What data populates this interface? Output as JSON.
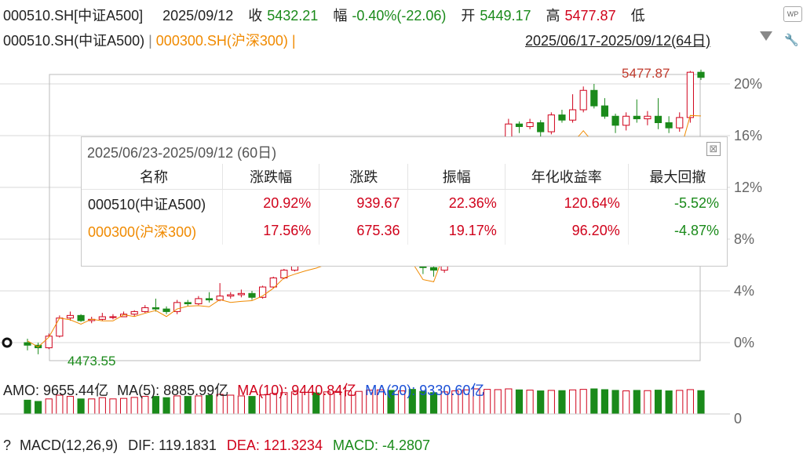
{
  "header": {
    "code": "000510.SH[中证A500]",
    "date": "2025/09/12",
    "close_label": "收",
    "close_value": "5432.21",
    "change_label": "幅",
    "change_value": "-0.40%(-22.06)",
    "open_label": "开",
    "open_value": "5449.17",
    "high_label": "高",
    "high_value": "5477.87",
    "low_label": "低"
  },
  "legend": {
    "series1": "000510.SH(中证A500)",
    "sep1": " | ",
    "series2": "000300.SH(沪深300)",
    "sep2": " |"
  },
  "range": "2025/06/17-2025/09/12(64日)",
  "wp_label": "WP",
  "y_axis": {
    "ticks": [
      "20%",
      "16%",
      "12%",
      "8%",
      "4%",
      "0%"
    ]
  },
  "annotations": {
    "high": "5477.87",
    "low": "4473.55"
  },
  "panel": {
    "title": "2025/06/23-2025/09/12 (60日)",
    "close": "⊠",
    "headers": [
      "名称",
      "涨跌幅",
      "涨跌",
      "振幅",
      "年化收益率",
      "最大回撤"
    ],
    "rows": [
      {
        "name": "000510(中证A500)",
        "pct": "20.92%",
        "chg": "939.67",
        "amp": "22.36%",
        "ann": "120.64%",
        "dd": "-5.52%"
      },
      {
        "name": "000300(沪深300)",
        "pct": "17.56%",
        "chg": "675.36",
        "amp": "19.17%",
        "ann": "96.20%",
        "dd": "-4.87%"
      }
    ]
  },
  "amo": {
    "amo": "AMO: 9655.44亿",
    "ma5": "MA(5): 8885.99亿",
    "ma10": "MA(10): 9440.84亿",
    "ma20": "MA(20): 9330.60亿",
    "axis_zero": "0"
  },
  "macd": {
    "help": "?",
    "title": "MACD(12,26,9)",
    "dif": "DIF: 119.1831",
    "dea": "DEA: 121.3234",
    "macd": "MACD: -4.2807"
  },
  "colors": {
    "up": "#d0021b",
    "down": "#1a8a1a",
    "hs300": "#f08a00",
    "ma20": "#1a4fd6",
    "grid": "#d8d8d8"
  },
  "chart_data": {
    "type": "candlestick",
    "y_unit": "%",
    "y_ticks": [
      0,
      4,
      8,
      12,
      16,
      20
    ],
    "start_marker_value": 4473.55,
    "high_value": 5477.87,
    "candles_pct": [
      [
        0.0,
        -0.2,
        0.3,
        -0.6
      ],
      [
        -0.2,
        -0.4,
        0.0,
        -0.9
      ],
      [
        -0.4,
        0.5,
        0.7,
        -0.5
      ],
      [
        0.5,
        1.9,
        2.1,
        0.4
      ],
      [
        1.9,
        2.1,
        2.4,
        1.7
      ],
      [
        2.1,
        1.7,
        2.2,
        1.6
      ],
      [
        1.7,
        1.8,
        2.0,
        1.5
      ],
      [
        1.8,
        2.0,
        2.3,
        1.7
      ],
      [
        2.0,
        2.0,
        2.2,
        1.8
      ],
      [
        2.0,
        2.2,
        2.4,
        2.0
      ],
      [
        2.2,
        2.4,
        2.5,
        2.0
      ],
      [
        2.4,
        2.7,
        2.9,
        2.3
      ],
      [
        2.7,
        2.6,
        3.4,
        2.4
      ],
      [
        2.6,
        2.4,
        2.8,
        2.2
      ],
      [
        2.4,
        3.1,
        3.3,
        2.2
      ],
      [
        3.1,
        3.0,
        3.3,
        2.8
      ],
      [
        3.0,
        3.4,
        3.6,
        2.9
      ],
      [
        3.4,
        3.3,
        3.9,
        3.1
      ],
      [
        3.3,
        3.6,
        4.6,
        3.2
      ],
      [
        3.6,
        3.7,
        3.9,
        3.4
      ],
      [
        3.7,
        3.8,
        4.1,
        3.5
      ],
      [
        3.8,
        3.5,
        4.0,
        3.3
      ],
      [
        3.5,
        4.3,
        4.4,
        3.4
      ],
      [
        4.3,
        5.0,
        5.1,
        4.2
      ],
      [
        5.0,
        5.6,
        5.7,
        4.9
      ],
      [
        5.6,
        6.3,
        6.5,
        5.5
      ],
      [
        6.3,
        6.6,
        6.9,
        6.1
      ],
      [
        6.6,
        6.5,
        6.9,
        6.2
      ],
      [
        6.5,
        7.2,
        7.4,
        6.3
      ],
      [
        7.2,
        7.6,
        7.8,
        7.0
      ],
      [
        7.6,
        7.9,
        8.1,
        7.4
      ],
      [
        7.9,
        8.3,
        8.5,
        7.7
      ],
      [
        8.3,
        8.5,
        8.7,
        8.0
      ],
      [
        8.5,
        8.8,
        9.0,
        8.2
      ],
      [
        8.8,
        8.6,
        9.1,
        8.3
      ],
      [
        8.6,
        8.9,
        9.2,
        8.4
      ],
      [
        8.9,
        7.0,
        8.9,
        5.9
      ],
      [
        7.0,
        5.8,
        7.1,
        5.3
      ],
      [
        5.8,
        5.6,
        6.0,
        5.1
      ],
      [
        5.6,
        7.9,
        8.1,
        5.4
      ],
      [
        7.9,
        9.5,
        9.8,
        7.8
      ],
      [
        9.5,
        11.2,
        11.4,
        9.3
      ],
      [
        11.2,
        12.8,
        13.1,
        11.0
      ],
      [
        12.8,
        14.0,
        14.3,
        12.6
      ],
      [
        14.0,
        15.2,
        15.5,
        13.8
      ],
      [
        15.2,
        16.9,
        17.3,
        15.0
      ],
      [
        16.9,
        16.7,
        17.1,
        16.2
      ],
      [
        16.7,
        17.0,
        17.3,
        16.5
      ],
      [
        17.0,
        16.3,
        17.2,
        15.9
      ],
      [
        16.3,
        17.6,
        17.8,
        16.1
      ],
      [
        17.6,
        17.2,
        18.0,
        17.0
      ],
      [
        17.2,
        18.0,
        19.2,
        17.0
      ],
      [
        18.0,
        19.5,
        19.8,
        17.8
      ],
      [
        19.5,
        18.3,
        20.0,
        18.1
      ],
      [
        18.3,
        17.5,
        18.9,
        17.3
      ],
      [
        17.5,
        16.8,
        17.7,
        16.2
      ],
      [
        16.8,
        17.5,
        17.8,
        16.4
      ],
      [
        17.5,
        17.3,
        18.8,
        17.0
      ],
      [
        17.3,
        17.5,
        17.9,
        16.8
      ],
      [
        17.5,
        17.0,
        18.9,
        16.5
      ],
      [
        17.0,
        16.6,
        17.5,
        16.2
      ],
      [
        16.6,
        17.4,
        17.8,
        16.3
      ],
      [
        17.4,
        20.9,
        21.0,
        17.0
      ],
      [
        20.9,
        20.5,
        21.1,
        20.3
      ]
    ],
    "volume_rel": [
      0.55,
      0.5,
      0.6,
      0.75,
      0.7,
      0.6,
      0.6,
      0.65,
      0.6,
      0.62,
      0.66,
      0.7,
      0.7,
      0.65,
      0.72,
      0.7,
      0.72,
      0.74,
      0.78,
      0.75,
      0.72,
      0.7,
      0.76,
      0.82,
      0.85,
      0.88,
      0.86,
      0.84,
      0.88,
      0.9,
      0.92,
      0.9,
      0.95,
      0.96,
      0.94,
      0.92,
      0.98,
      0.9,
      0.85,
      0.88,
      0.92,
      0.96,
      1.0,
      0.98,
      0.97,
      1.0,
      0.96,
      0.95,
      0.92,
      0.94,
      0.93,
      0.96,
      0.98,
      1.0,
      0.97,
      0.94,
      0.92,
      0.94,
      0.93,
      0.95,
      0.92,
      0.94,
      0.97,
      0.93
    ]
  }
}
